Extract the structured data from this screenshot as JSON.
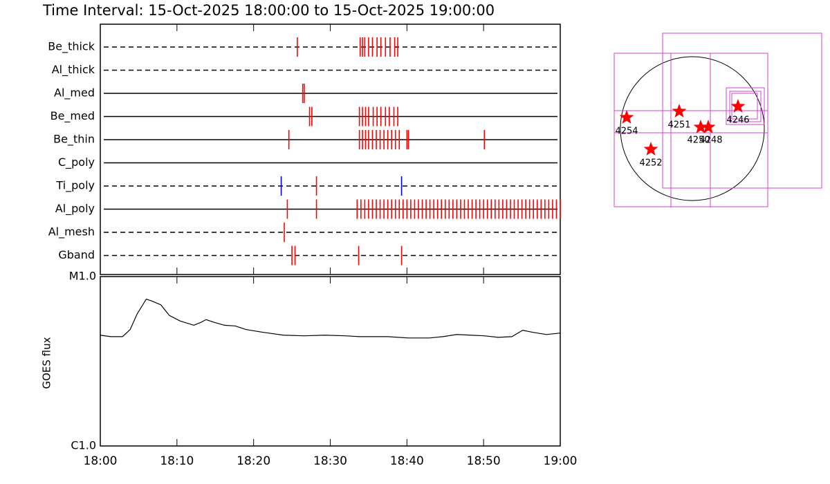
{
  "chart_data": [
    {
      "type": "timeline",
      "title": "Time Interval: 15-Oct-2025 18:00:00 to 15-Oct-2025 19:00:00",
      "xlim": [
        0,
        60
      ],
      "rows": [
        {
          "name": "Be_thick",
          "style": "dashed",
          "series": [
            {
              "color": "#ff0000",
              "values": [
                25.7,
                33.9,
                34.2,
                34.5,
                35.0,
                35.5,
                36.1,
                36.6,
                37.2,
                37.8,
                38.4,
                38.8
              ]
            }
          ]
        },
        {
          "name": "Al_thick",
          "style": "dashed",
          "series": []
        },
        {
          "name": "Al_med",
          "style": "solid",
          "series": [
            {
              "color": "#ff0000",
              "values": [
                26.4,
                26.6
              ]
            }
          ]
        },
        {
          "name": "Be_med",
          "style": "solid",
          "series": [
            {
              "color": "#ff0000",
              "values": [
                27.3,
                27.6,
                33.8,
                34.2,
                34.6,
                35.0,
                35.6,
                36.1,
                36.6,
                37.2,
                37.7,
                38.3,
                38.8
              ]
            }
          ]
        },
        {
          "name": "Be_thin",
          "style": "solid",
          "series": [
            {
              "color": "#ff0000",
              "values": [
                24.6,
                33.8,
                34.2,
                34.6,
                35.0,
                35.5,
                36.0,
                36.5,
                37.0,
                37.5,
                38.0,
                38.5,
                39.0,
                40.0,
                40.2,
                50.1
              ]
            }
          ]
        },
        {
          "name": "C_poly",
          "style": "solid",
          "series": []
        },
        {
          "name": "Ti_poly",
          "style": "dashed",
          "series": [
            {
              "color": "#ff0000",
              "values": [
                28.2
              ]
            },
            {
              "color": "#0000ff",
              "values": [
                23.6,
                39.3
              ]
            }
          ]
        },
        {
          "name": "Al_poly",
          "style": "solid",
          "series": [
            {
              "color": "#ff0000",
              "values": [
                24.4,
                28.2,
                33.5,
                34,
                34.5,
                35,
                35.5,
                36,
                36.5,
                37,
                37.5,
                38,
                38.5,
                39,
                39.5,
                40,
                40.5,
                41,
                41.5,
                42,
                42.5,
                43,
                43.5,
                44,
                44.5,
                45,
                45.5,
                46,
                46.5,
                47,
                47.5,
                48,
                48.5,
                49,
                49.5,
                50,
                50.5,
                51,
                51.5,
                52,
                52.5,
                53,
                53.5,
                54,
                54.5,
                55,
                55.5,
                56,
                56.5,
                57,
                57.5,
                58,
                58.5,
                59,
                59.5,
                60
              ]
            }
          ]
        },
        {
          "name": "Al_mesh",
          "style": "dashed",
          "series": [
            {
              "color": "#ff0000",
              "values": [
                24.0
              ]
            }
          ]
        },
        {
          "name": "Gband",
          "style": "dashed",
          "series": [
            {
              "color": "#ff0000",
              "values": [
                25.0,
                25.4,
                33.7,
                39.3
              ]
            }
          ]
        }
      ]
    },
    {
      "type": "line",
      "ylabel": "GOES flux",
      "color": "#000000",
      "log": true,
      "xlim": [
        0,
        60
      ],
      "xticks": [
        {
          "value": 0,
          "label": "18:00"
        },
        {
          "value": 10,
          "label": "18:10"
        },
        {
          "value": 20,
          "label": "18:20"
        },
        {
          "value": 30,
          "label": "18:30"
        },
        {
          "value": 40,
          "label": "18:40"
        },
        {
          "value": 50,
          "label": "18:50"
        },
        {
          "value": 60,
          "label": "19:00"
        }
      ],
      "ylim": [
        1e-06,
        1e-05
      ],
      "yticks": [
        {
          "value": 1e-06,
          "label": "C1.0"
        },
        {
          "value": 1e-05,
          "label": "M1.0"
        }
      ],
      "x": [
        0,
        1.35,
        2.9,
        3.9,
        4.8,
        6.0,
        6.8,
        7.9,
        9.0,
        10.4,
        12.2,
        13.1,
        13.8,
        14.9,
        16.2,
        17.6,
        19.0,
        21.2,
        23.9,
        26.6,
        29.3,
        32.0,
        33.8,
        37.5,
        40.2,
        42.9,
        44.7,
        46.5,
        48.3,
        50.1,
        51.9,
        53.7,
        55.1,
        56.4,
        58.2,
        60
      ],
      "values": [
        4.51e-06,
        4.42e-06,
        4.42e-06,
        4.87e-06,
        6.01e-06,
        7.36e-06,
        7.15e-06,
        6.81e-06,
        5.9e-06,
        5.47e-06,
        5.16e-06,
        5.36e-06,
        5.57e-06,
        5.36e-06,
        5.16e-06,
        5.11e-06,
        4.87e-06,
        4.69e-06,
        4.51e-06,
        4.47e-06,
        4.51e-06,
        4.47e-06,
        4.42e-06,
        4.42e-06,
        4.34e-06,
        4.34e-06,
        4.42e-06,
        4.55e-06,
        4.51e-06,
        4.47e-06,
        4.38e-06,
        4.42e-06,
        4.82e-06,
        4.69e-06,
        4.55e-06,
        4.64e-06
      ]
    },
    {
      "type": "map",
      "star_color": "#ff0000",
      "box_color": "#d040d0",
      "labels": [
        "4254",
        "4251",
        "4250",
        "4248",
        "4246",
        "4252"
      ]
    }
  ]
}
